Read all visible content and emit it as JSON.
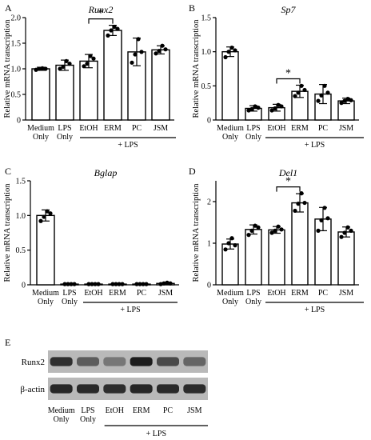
{
  "chart_data": [
    {
      "panel": "A",
      "type": "bar",
      "title": "Runx2",
      "ylabel": "Relative mRNA transcription",
      "ylim": [
        0,
        2
      ],
      "yticks": [
        "0",
        "0.5",
        "1.0",
        "1.5",
        "2.0"
      ],
      "categories": [
        "Medium\nOnly",
        "LPS\nOnly",
        "EtOH",
        "ERM",
        "PC",
        "JSM"
      ],
      "values": [
        1.0,
        1.07,
        1.15,
        1.75,
        1.33,
        1.37
      ],
      "errors": [
        0.03,
        0.1,
        0.13,
        0.1,
        0.27,
        0.08
      ],
      "points": [
        [
          0.98,
          1.0,
          1.01,
          1.0
        ],
        [
          1.0,
          1.04,
          1.15,
          1.1
        ],
        [
          1.05,
          1.1,
          1.25,
          1.2
        ],
        [
          1.65,
          1.75,
          1.82,
          1.78
        ],
        [
          1.12,
          1.28,
          1.58,
          1.33
        ],
        [
          1.3,
          1.35,
          1.45,
          1.38
        ]
      ],
      "bracket": {
        "from": 2,
        "to": 3,
        "label": "*"
      },
      "group_label": "+ LPS"
    },
    {
      "panel": "B",
      "type": "bar",
      "title": "Sp7",
      "ylabel": "Relative mRNA transcription",
      "ylim": [
        0,
        1.5
      ],
      "yticks": [
        "0",
        "0.5",
        "1.0",
        "1.5"
      ],
      "categories": [
        "Medium\nOnly",
        "LPS\nOnly",
        "EtOH",
        "ERM",
        "PC",
        "JSM"
      ],
      "values": [
        1.0,
        0.17,
        0.18,
        0.42,
        0.38,
        0.28
      ],
      "errors": [
        0.07,
        0.04,
        0.05,
        0.09,
        0.14,
        0.04
      ],
      "points": [
        [
          0.92,
          1.0,
          1.06,
          1.02
        ],
        [
          0.14,
          0.16,
          0.2,
          0.18
        ],
        [
          0.14,
          0.17,
          0.22,
          0.2
        ],
        [
          0.35,
          0.4,
          0.5,
          0.44
        ],
        [
          0.28,
          0.36,
          0.5,
          0.4
        ],
        [
          0.25,
          0.28,
          0.31,
          0.29
        ]
      ],
      "bracket": {
        "from": 2,
        "to": 3,
        "label": "*"
      },
      "group_label": "+ LPS"
    },
    {
      "panel": "C",
      "type": "bar",
      "title": "Bglap",
      "ylabel": "Relative mRNA transcription",
      "ylim": [
        0,
        1.5
      ],
      "yticks": [
        "0",
        "0.5",
        "1.0",
        "1.5"
      ],
      "categories": [
        "Medium\nOnly",
        "LPS\nOnly",
        "EtOH",
        "ERM",
        "PC",
        "JSM"
      ],
      "values": [
        1.0,
        0.01,
        0.01,
        0.01,
        0.01,
        0.02
      ],
      "errors": [
        0.08,
        0.0,
        0.0,
        0.0,
        0.0,
        0.01
      ],
      "points": [
        [
          0.92,
          0.98,
          1.06,
          1.03
        ],
        [
          0.01,
          0.01,
          0.01,
          0.01
        ],
        [
          0.01,
          0.01,
          0.01,
          0.01
        ],
        [
          0.01,
          0.01,
          0.01,
          0.01
        ],
        [
          0.01,
          0.01,
          0.01,
          0.01
        ],
        [
          0.01,
          0.02,
          0.03,
          0.02
        ]
      ],
      "bracket": null,
      "group_label": "+ LPS"
    },
    {
      "panel": "D",
      "type": "bar",
      "title": "Del1",
      "ylabel": "Relative mRNA transcription",
      "ylim": [
        0,
        2.5
      ],
      "yticks": [
        "0",
        "1",
        "2"
      ],
      "categories": [
        "Medium\nOnly",
        "LPS\nOnly",
        "EtOH",
        "ERM",
        "PC",
        "JSM"
      ],
      "values": [
        0.98,
        1.33,
        1.32,
        1.97,
        1.58,
        1.27
      ],
      "errors": [
        0.12,
        0.11,
        0.08,
        0.22,
        0.28,
        0.12
      ],
      "points": [
        [
          0.85,
          1.0,
          1.12,
          0.95
        ],
        [
          1.2,
          1.3,
          1.42,
          1.38
        ],
        [
          1.25,
          1.3,
          1.4,
          1.33
        ],
        [
          1.78,
          1.95,
          2.2,
          1.97
        ],
        [
          1.3,
          1.55,
          1.85,
          1.6
        ],
        [
          1.15,
          1.25,
          1.38,
          1.3
        ]
      ],
      "bracket": {
        "from": 2,
        "to": 3,
        "label": "*"
      },
      "group_label": "+ LPS"
    }
  ],
  "western": {
    "panel": "E",
    "rows": [
      "Runx2",
      "β-actin"
    ],
    "lanes": [
      "Medium\nOnly",
      "LPS\nOnly",
      "EtOH",
      "ERM",
      "PC",
      "JSM"
    ],
    "group_label": "+ LPS",
    "intensities": [
      [
        0.85,
        0.6,
        0.45,
        0.95,
        0.7,
        0.55
      ],
      [
        0.9,
        0.88,
        0.86,
        0.9,
        0.88,
        0.87
      ]
    ]
  }
}
